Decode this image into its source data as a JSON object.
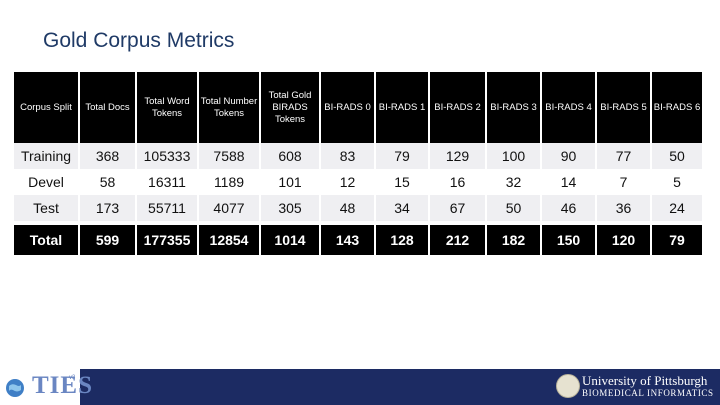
{
  "title": "Gold Corpus Metrics",
  "table": {
    "headers": [
      "Corpus Split",
      "Total Docs",
      "Total Word Tokens",
      "Total Number Tokens",
      "Total Gold BIRADS Tokens",
      "BI-RADS 0",
      "BI-RADS 1",
      "BI-RADS 2",
      "BI-RADS 3",
      "BI-RADS 4",
      "BI-RADS 5",
      "BI-RADS 6"
    ],
    "rows": [
      [
        "Training",
        "368",
        "105333",
        "7588",
        "608",
        "83",
        "79",
        "129",
        "100",
        "90",
        "77",
        "50"
      ],
      [
        "Devel",
        "58",
        "16311",
        "1189",
        "101",
        "12",
        "15",
        "16",
        "32",
        "14",
        "7",
        "5"
      ],
      [
        "Test",
        "173",
        "55711",
        "4077",
        "305",
        "48",
        "34",
        "67",
        "50",
        "46",
        "36",
        "24"
      ]
    ],
    "total": [
      "Total",
      "599",
      "177355",
      "12854",
      "1014",
      "143",
      "128",
      "212",
      "182",
      "150",
      "120",
      "79"
    ]
  },
  "footer": {
    "logo_text": "TIES",
    "logo_mark": "v3",
    "university": "University of Pittsburgh",
    "department": "BIOMEDICAL INFORMATICS"
  },
  "colors": {
    "title": "#1f3a66",
    "header_bg": "#000000",
    "row_alt": "#efeff2",
    "footer_bar": "#1c2b63"
  },
  "icons": [
    "globe-icon",
    "university-seal-icon"
  ]
}
